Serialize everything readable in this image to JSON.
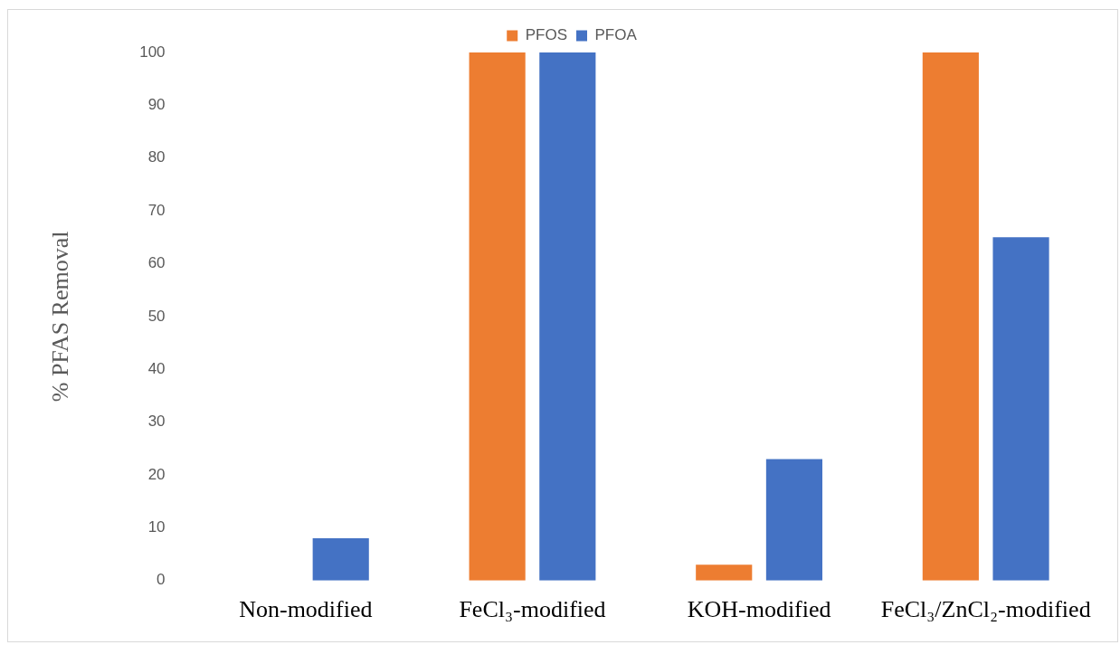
{
  "chart_data": {
    "type": "bar",
    "ylabel": "% PFAS Removal",
    "categories": [
      "Non-modified",
      "FeCl₃-modified",
      "KOH-modified",
      "FeCl₃/ZnCl₂-modified"
    ],
    "series": [
      {
        "name": "PFOS",
        "color": "#ed7d31",
        "values": [
          0,
          100,
          3,
          100
        ]
      },
      {
        "name": "PFOA",
        "color": "#4472c4",
        "values": [
          8,
          100,
          23,
          65
        ]
      }
    ],
    "ylim": [
      0,
      100
    ],
    "yticks": [
      0,
      10,
      20,
      30,
      40,
      50,
      60,
      70,
      80,
      90,
      100
    ],
    "grid": false,
    "legend": "top"
  }
}
